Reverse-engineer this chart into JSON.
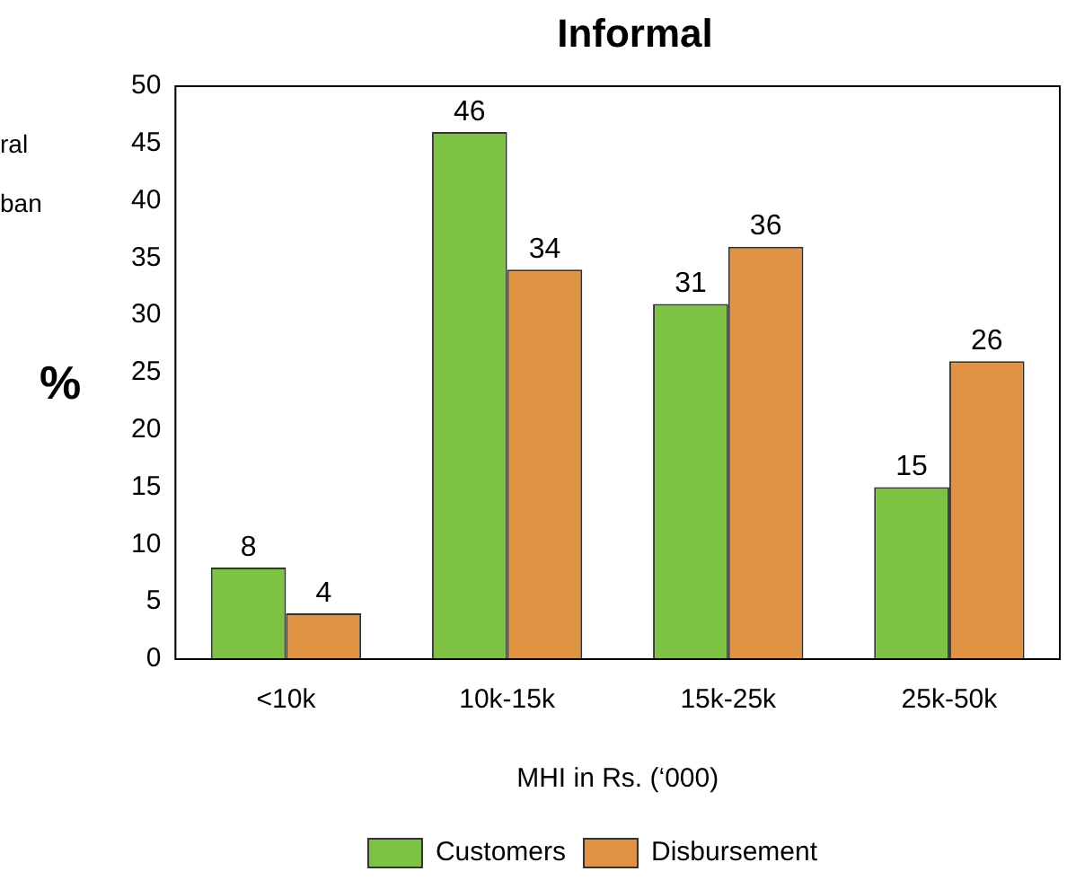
{
  "chart_data": {
    "type": "bar",
    "title": "Informal",
    "xlabel": "MHI in Rs. (‘000)",
    "ylabel": "%",
    "categories": [
      "<10k",
      "10k-15k",
      "15k-25k",
      "25k-50k"
    ],
    "series": [
      {
        "name": "Customers",
        "color": "#7dc242",
        "values": [
          8,
          46,
          31,
          15
        ]
      },
      {
        "name": "Disbursement",
        "color": "#e09443",
        "values": [
          4,
          34,
          36,
          26
        ]
      }
    ],
    "ylim": [
      0,
      50
    ],
    "yticks": [
      0,
      5,
      10,
      15,
      20,
      25,
      30,
      35,
      40,
      45,
      50
    ],
    "grid": false,
    "legend": "bottom",
    "data_labels": true,
    "annotations": [
      "ral",
      "ban"
    ]
  }
}
